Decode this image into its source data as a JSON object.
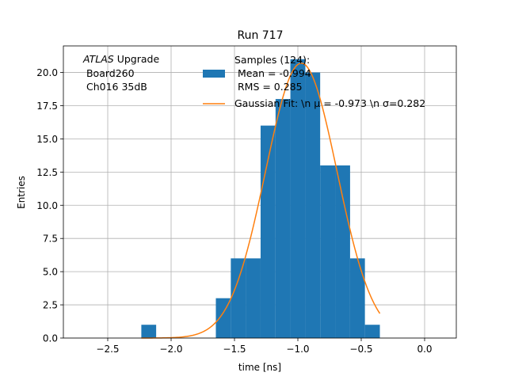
{
  "chart_data": {
    "type": "bar",
    "title": "Run 717",
    "xlabel": "time [ns]",
    "ylabel": "Entries",
    "xlim": [
      -2.85,
      0.25
    ],
    "ylim": [
      0,
      22
    ],
    "grid": true,
    "xticks": [
      -2.5,
      -2.0,
      -1.5,
      -1.0,
      -0.5,
      0.0
    ],
    "xtick_labels": [
      "−2.5",
      "−2.0",
      "−1.5",
      "−1.0",
      "−0.5",
      "0.0"
    ],
    "yticks": [
      0,
      2.5,
      5,
      7.5,
      10,
      12.5,
      15,
      17.5,
      20
    ],
    "ytick_labels": [
      "0.0",
      "2.5",
      "5.0",
      "7.5",
      "10.0",
      "12.5",
      "15.0",
      "17.5",
      "20.0"
    ],
    "annotation": {
      "italic": "ATLAS",
      "rest": " Upgrade",
      "line2": " Board260",
      "line3": " Ch016 35dB"
    },
    "legend_position": "top-center",
    "series": [
      {
        "name": "Samples (124):\n Mean = -0.994\n RMS = 0.285",
        "legend_lines": [
          "Samples (124):",
          " Mean = -0.994",
          " RMS = 0.285"
        ],
        "kind": "histogram",
        "color": "#1f77b4",
        "bin_edges": [
          -2.235,
          -2.118,
          -2.0,
          -1.882,
          -1.765,
          -1.647,
          -1.529,
          -1.412,
          -1.294,
          -1.176,
          -1.059,
          -0.941,
          -0.824,
          -0.706,
          -0.588,
          -0.471,
          -0.353
        ],
        "values": [
          1,
          0,
          0,
          0,
          0,
          3,
          6,
          6,
          16,
          18,
          21,
          20,
          13,
          13,
          6,
          1
        ]
      },
      {
        "name": "Gaussian Fit: \\n μ = -0.973 \\n σ=0.282",
        "legend_lines": [
          "Gaussian Fit: \\n μ = -0.973 \\n σ=0.282"
        ],
        "kind": "gaussian",
        "color": "#ff7f0e",
        "amplitude": 20.7,
        "mu": -0.973,
        "sigma": 0.282,
        "x_range": [
          -2.235,
          -0.353
        ]
      }
    ]
  }
}
